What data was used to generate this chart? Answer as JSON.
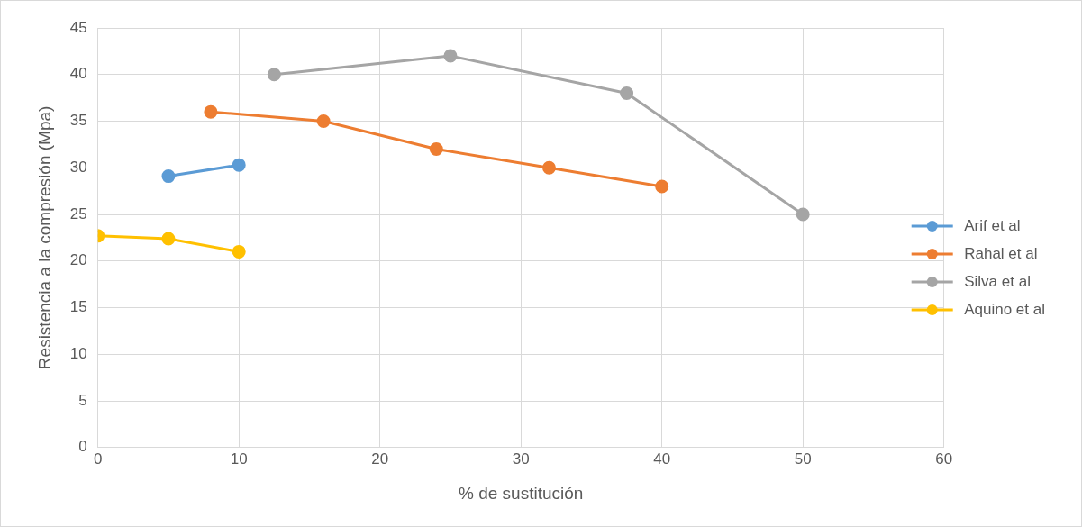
{
  "chart_data": {
    "type": "line",
    "xlabel": "% de sustitución",
    "ylabel": "Resistencia a la compresión (Mpa)",
    "xlim": [
      0,
      60
    ],
    "xticks": [
      0,
      10,
      20,
      30,
      40,
      50,
      60
    ],
    "ylim": [
      0,
      45
    ],
    "yticks": [
      0,
      5,
      10,
      15,
      20,
      25,
      30,
      35,
      40,
      45
    ],
    "grid": true,
    "legend": "right",
    "marker": "circle",
    "line_style": "solid",
    "series": [
      {
        "name": "Arif et al",
        "color": "#5b9bd5",
        "x": [
          5,
          10
        ],
        "values": [
          29.1,
          30.3
        ]
      },
      {
        "name": "Rahal et al",
        "color": "#ed7d31",
        "x": [
          8,
          16,
          24,
          32,
          40
        ],
        "values": [
          36,
          35,
          32,
          30,
          28
        ]
      },
      {
        "name": "Silva et al",
        "color": "#a5a5a5",
        "x": [
          12.5,
          25,
          37.5,
          50
        ],
        "values": [
          40,
          42,
          38,
          25
        ]
      },
      {
        "name": "Aquino et al",
        "color": "#ffc000",
        "x": [
          0,
          5,
          10
        ],
        "values": [
          22.7,
          22.4,
          21.0
        ]
      }
    ]
  }
}
